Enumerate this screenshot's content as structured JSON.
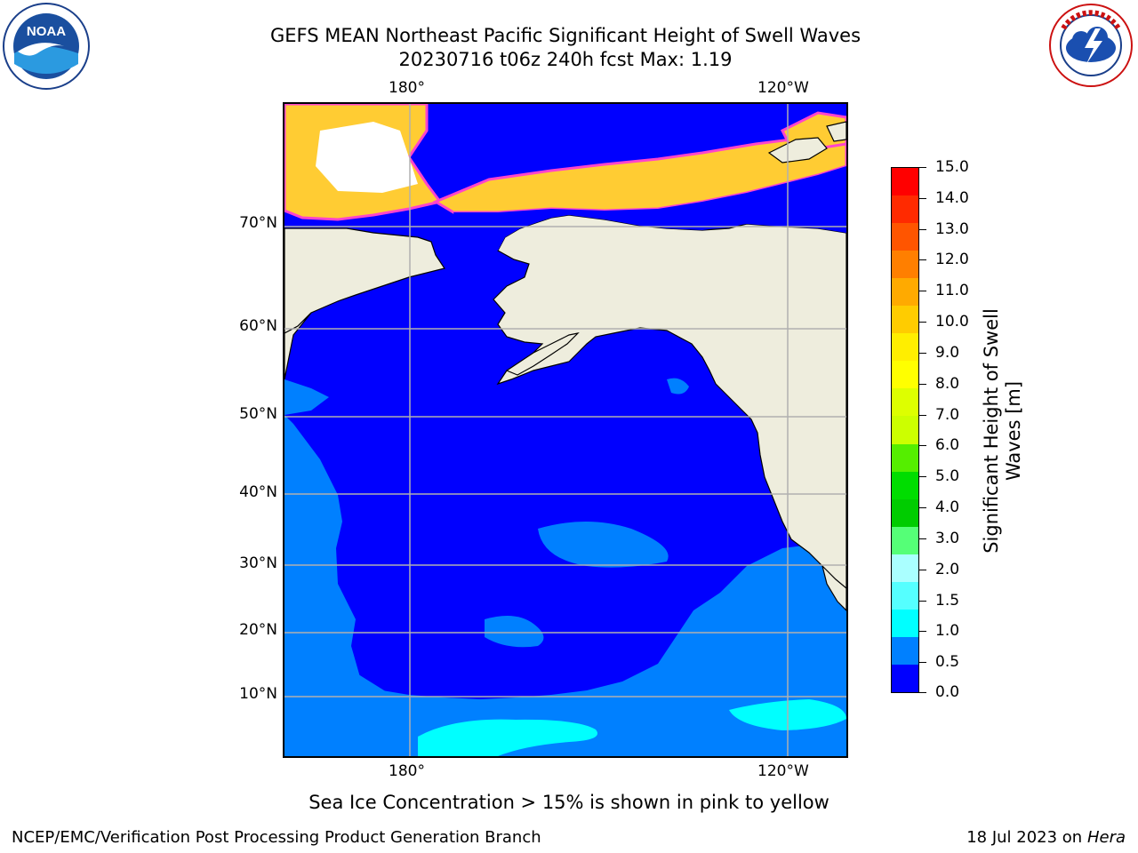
{
  "title": {
    "line1": "GEFS MEAN Northeast Pacific Significant Height of Swell Waves",
    "line2": "20230716 t06z 240h fcst   Max: 1.19"
  },
  "logos": {
    "left": {
      "text": "NOAA",
      "ring_text": "NATIONAL OCEANIC AND ATMOSPHERIC ADMINISTRATION · U.S. DEPARTMENT OF COMMERCE"
    },
    "right": {
      "ring_text": "NATIONAL WEATHER SERVICE"
    }
  },
  "map": {
    "lon_labels_top": [
      "180°",
      "120°W"
    ],
    "lon_labels_bottom": [
      "180°",
      "120°W"
    ],
    "lat_labels": [
      "70°N",
      "60°N",
      "50°N",
      "40°N",
      "30°N",
      "20°N",
      "10°N"
    ],
    "colors": {
      "ocean_low": "#0000ff",
      "ocean_mid": "#0080ff",
      "ocean_cyan": "#00ffff",
      "land": "#eeeddd",
      "ice": "#ffcc33",
      "ice_edge": "#ff44cc",
      "grid": "#b0b0b0"
    }
  },
  "colorbar": {
    "axis_title": "Significant Height of Swell\nWaves [m]",
    "tick_labels": [
      "15.0",
      "14.0",
      "13.0",
      "12.0",
      "11.0",
      "10.0",
      "9.0",
      "8.0",
      "7.0",
      "6.0",
      "5.0",
      "4.0",
      "3.0",
      "2.0",
      "1.5",
      "1.0",
      "0.5",
      "0.0"
    ],
    "colors_top_to_bottom": [
      "#ff0000",
      "#ff2a00",
      "#ff5500",
      "#ff7f00",
      "#ffaa00",
      "#ffcc00",
      "#ffee00",
      "#ffff00",
      "#ddff00",
      "#ccff00",
      "#55ee00",
      "#00dd00",
      "#00cc00",
      "#55ff77",
      "#aaffff",
      "#55ffff",
      "#00ffff",
      "#0080ff",
      "#0000ff"
    ]
  },
  "caption": "Sea Ice Concentration > 15% is shown in pink to yellow",
  "footer": {
    "left": "NCEP/EMC/Verification Post Processing Product Generation Branch",
    "right_prefix": "18 Jul 2023 on ",
    "right_host": "Hera"
  }
}
